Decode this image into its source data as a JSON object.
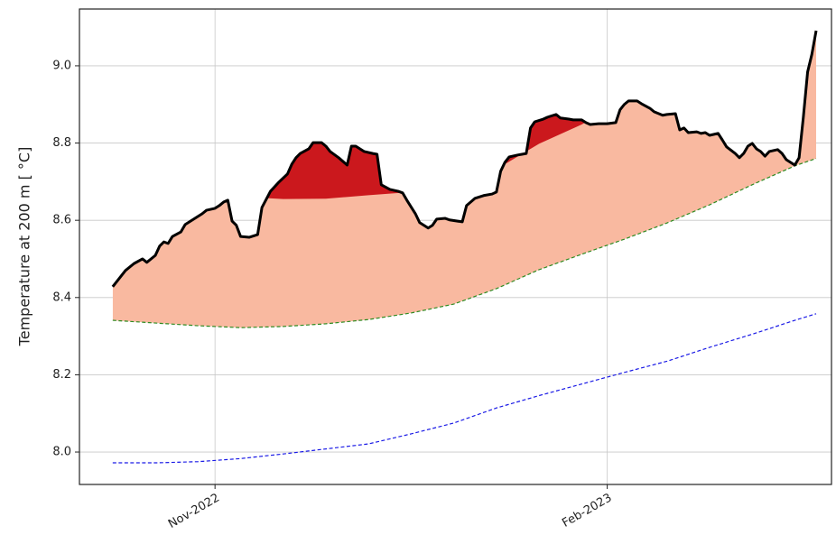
{
  "chart_data": {
    "type": "line",
    "ylabel": "Temperature at 200 m [ °C]",
    "xlim": [
      -7.8,
      168.6
    ],
    "ylim": [
      7.916,
      9.147
    ],
    "xticks": [
      {
        "value": 24,
        "label": "Nov-2022"
      },
      {
        "value": 116,
        "label": "Feb-2023"
      }
    ],
    "yticks": [
      {
        "value": 8,
        "label": "8.0"
      },
      8.2,
      8.4,
      8.6,
      8.8,
      {
        "value": 9,
        "label": "9.0"
      }
    ],
    "grid": true,
    "fill_colors": {
      "above_threshold": "#f9b9a0",
      "above_double": "#cb181d"
    },
    "series": [
      {
        "color": "#000000",
        "style": "solid",
        "width": 3,
        "x": [
          0,
          1,
          3,
          5,
          7,
          8,
          10,
          11,
          12,
          13,
          14,
          16,
          17,
          19,
          21,
          22,
          24,
          25,
          26,
          27,
          28,
          29,
          30,
          32,
          34,
          35,
          36,
          37,
          39,
          41,
          42,
          43,
          44,
          46,
          47,
          49,
          50,
          51,
          53,
          55,
          56,
          57,
          59,
          61,
          62,
          63,
          65,
          67,
          68,
          69,
          71,
          72,
          74,
          75,
          76,
          78,
          79,
          82,
          83,
          85,
          87,
          89,
          90,
          91,
          92,
          93,
          95,
          96,
          97,
          98,
          99,
          101,
          102,
          104,
          105,
          107,
          108,
          110,
          111,
          112,
          114,
          116,
          118,
          119,
          120,
          121,
          123,
          124,
          126,
          127,
          129,
          130,
          132,
          133,
          134,
          135,
          137,
          138,
          139,
          140,
          142,
          143,
          144,
          146,
          147,
          148,
          149,
          150,
          151,
          152,
          153,
          154,
          156,
          157,
          158,
          159,
          160,
          161,
          162,
          163,
          164,
          165
        ],
        "values": [
          8.428,
          8.442,
          8.47,
          8.488,
          8.5,
          8.491,
          8.509,
          8.533,
          8.544,
          8.54,
          8.558,
          8.57,
          8.589,
          8.603,
          8.617,
          8.626,
          8.631,
          8.638,
          8.647,
          8.652,
          8.598,
          8.587,
          8.558,
          8.556,
          8.563,
          8.633,
          8.654,
          8.675,
          8.699,
          8.72,
          8.745,
          8.762,
          8.773,
          8.785,
          8.801,
          8.801,
          8.792,
          8.778,
          8.762,
          8.743,
          8.792,
          8.792,
          8.778,
          8.773,
          8.771,
          8.692,
          8.68,
          8.675,
          8.671,
          8.652,
          8.617,
          8.594,
          8.58,
          8.587,
          8.603,
          8.605,
          8.601,
          8.596,
          8.638,
          8.657,
          8.664,
          8.668,
          8.673,
          8.727,
          8.75,
          8.764,
          8.769,
          8.771,
          8.773,
          8.839,
          8.855,
          8.862,
          8.867,
          8.874,
          8.865,
          8.862,
          8.86,
          8.86,
          8.853,
          8.848,
          8.85,
          8.85,
          8.853,
          8.886,
          8.9,
          8.909,
          8.909,
          8.902,
          8.89,
          8.881,
          8.872,
          8.874,
          8.876,
          8.834,
          8.839,
          8.827,
          8.829,
          8.825,
          8.827,
          8.82,
          8.825,
          8.808,
          8.79,
          8.773,
          8.762,
          8.773,
          8.792,
          8.799,
          8.785,
          8.778,
          8.766,
          8.778,
          8.783,
          8.773,
          8.757,
          8.75,
          8.743,
          8.762,
          8.867,
          8.984,
          9.03,
          9.091
        ]
      },
      {
        "color": "#2e8b22",
        "style": "dashed",
        "width": 1.2,
        "role": "threshold",
        "x": [
          0,
          10,
          20,
          30,
          40,
          50,
          60,
          70,
          80,
          90,
          100,
          110,
          120,
          130,
          140,
          150,
          160,
          165
        ],
        "values": [
          8.341,
          8.334,
          8.327,
          8.322,
          8.325,
          8.332,
          8.343,
          8.36,
          8.383,
          8.423,
          8.472,
          8.512,
          8.551,
          8.593,
          8.64,
          8.692,
          8.741,
          8.76
        ]
      },
      {
        "color": "#1a1ae6",
        "style": "dashed",
        "width": 1.2,
        "x": [
          0,
          10,
          20,
          30,
          40,
          50,
          60,
          70,
          80,
          90,
          100,
          110,
          120,
          130,
          140,
          150,
          160,
          165
        ],
        "values": [
          7.972,
          7.972,
          7.975,
          7.983,
          7.995,
          8.008,
          8.021,
          8.047,
          8.075,
          8.114,
          8.146,
          8.176,
          8.206,
          8.235,
          8.271,
          8.305,
          8.341,
          8.358
        ]
      },
      {
        "color": "none",
        "style": "none",
        "width": 0,
        "role": "double_threshold",
        "x": [
          0,
          10,
          20,
          30,
          40,
          50,
          60,
          70,
          80,
          90,
          100,
          110,
          120,
          130,
          140,
          150,
          160,
          165
        ],
        "values": [
          8.71,
          8.696,
          8.679,
          8.661,
          8.655,
          8.656,
          8.665,
          8.673,
          8.691,
          8.732,
          8.798,
          8.848,
          8.91,
          8.951,
          9.009,
          9.079,
          9.141,
          9.162
        ]
      }
    ]
  }
}
